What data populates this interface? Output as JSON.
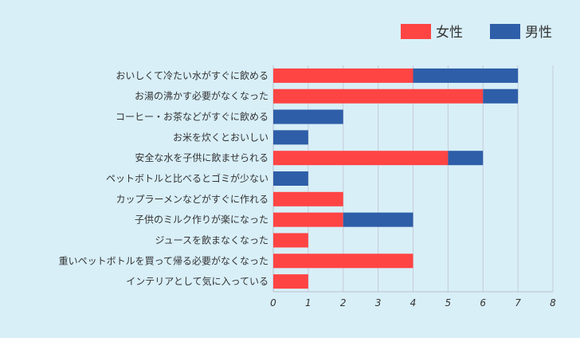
{
  "chart_data": {
    "type": "bar",
    "orientation": "horizontal",
    "stacked": true,
    "categories": [
      "おいしくて冷たい水がすぐに飲める",
      "お湯の沸かす必要がなくなった",
      "コーヒー・お茶などがすぐに飲める",
      "お米を炊くとおいしい",
      "安全な水を子供に飲ませられる",
      "ペットボトルと比べるとゴミが少ない",
      "カップラーメンなどがすぐに作れる",
      "子供のミルク作りが楽になった",
      "ジュースを飲まなくなった",
      "重いペットボトルを買って帰る必要がなくなった",
      "インテリアとして気に入っている"
    ],
    "series": [
      {
        "name": "女性",
        "color": "#ff4444",
        "values": [
          4,
          6,
          0,
          0,
          5,
          0,
          2,
          2,
          1,
          4,
          1
        ]
      },
      {
        "name": "男性",
        "color": "#2e5ea8",
        "values": [
          3,
          1,
          2,
          1,
          1,
          1,
          0,
          2,
          0,
          0,
          0
        ]
      }
    ],
    "xlim": [
      0,
      8
    ],
    "xticks": [
      "0",
      "1",
      "2",
      "3",
      "4",
      "5",
      "6",
      "7",
      "8"
    ],
    "grid": true,
    "legend": "top-right"
  }
}
